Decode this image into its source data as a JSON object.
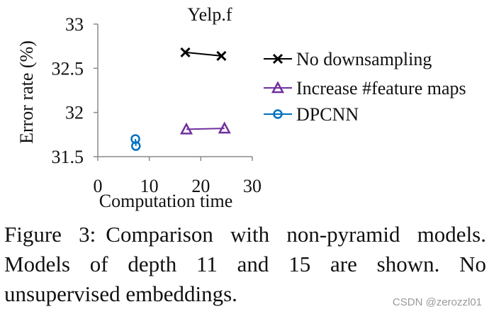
{
  "chart_data": {
    "type": "scatter",
    "title": "Yelp.f",
    "xlabel": "Computation time",
    "ylabel": "Error rate (%)",
    "xlim": [
      0,
      30
    ],
    "ylim": [
      31.5,
      33
    ],
    "xticks": [
      0,
      10,
      20,
      30
    ],
    "yticks": [
      31.5,
      32,
      32.5,
      33
    ],
    "ytick_labels": [
      "31.5",
      "32",
      "32.5",
      "33"
    ],
    "grid": false,
    "legend": "right",
    "series": [
      {
        "name": "No downsampling",
        "marker": "x",
        "color": "#000000",
        "points": [
          {
            "x": 17,
            "y": 32.68
          },
          {
            "x": 24,
            "y": 32.64
          }
        ]
      },
      {
        "name": "Increase #feature maps",
        "marker": "triangle",
        "color": "#7030a0",
        "points": [
          {
            "x": 17.2,
            "y": 31.81
          },
          {
            "x": 24.6,
            "y": 31.82
          }
        ]
      },
      {
        "name": "DPCNN",
        "marker": "circle",
        "color": "#0070c0",
        "points": [
          {
            "x": 7.3,
            "y": 31.7
          },
          {
            "x": 7.4,
            "y": 31.62
          }
        ]
      }
    ]
  },
  "caption": {
    "label": "Figure 3:",
    "text": "Comparison with non-pyramid models. Models of depth 11 and 15 are shown. No unsupervised embeddings."
  },
  "watermark": "CSDN @zerozzl01"
}
